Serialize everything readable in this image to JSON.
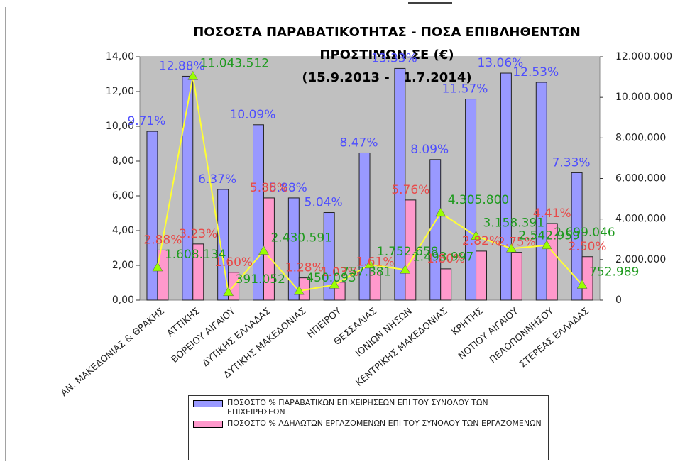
{
  "chart_data": {
    "type": "bar",
    "title": [
      "ΠΟΣΟΣΤΑ ΠΑΡΑΒΑΤΙΚΟΤΗΤΑΣ - ΠΟΣΑ ΕΠΙΒΛΗΘΕΝΤΩΝ",
      "ΠΡΟΣΤΙΜΩΝ ΣΕ (€)"
    ],
    "subtitle": "(15.9.2013 - 31.7.2014)",
    "categories": [
      "ΑΝ. ΜΑΚΕΔΟΝΙΑΣ & ΘΡΑΚΗΣ",
      "ΑΤΤΙΚΗΣ",
      "ΒΟΡΕΙΟΥ ΑΙΓΑΙΟΥ",
      "ΔΥΤΙΚΗΣ ΕΛΛΑΔΑΣ",
      "ΔΥΤΙΚΗΣ ΜΑΚΕΔΟΝΙΑΣ",
      "ΗΠΕΙΡΟΥ",
      "ΘΕΣΣΑΛΙΑΣ",
      "ΙΟΝΙΩΝ ΝΗΣΩΝ",
      "ΚΕΝΤΡΙΚΗΣ ΜΑΚΕΔΟΝΙΑΣ",
      "ΚΡΗΤΗΣ",
      "ΝΟΤΙΟΥ ΑΙΓΑΙΟΥ",
      "ΠΕΛΟΠΟΝΝΗΣΟΥ",
      "ΣΤΕΡΕΑΣ ΕΛΛΑΔΑΣ"
    ],
    "series": [
      {
        "name": "ΠΟΣΟΣΤΟ % ΠΑΡΑΒΑΤΙΚΩΝ ΕΠΙΧΕΙΡΗΣΕΩΝ ΕΠΙ ΤΟΥ ΣΥΝΟΛΟΥ ΤΩΝ ΕΠΙΧΕΙΡΗΣΕΩΝ",
        "color": "#9999ff",
        "label_color": "#4d4dff",
        "values": [
          9.71,
          12.88,
          6.37,
          10.09,
          5.88,
          5.04,
          8.47,
          13.33,
          8.09,
          11.57,
          13.06,
          12.53,
          7.33
        ],
        "value_labels": [
          "9.71%",
          "12.88%",
          "6.37%",
          "10.09%",
          "5.88%",
          "5.04%",
          "8.47%",
          "13.33%",
          "8.09%",
          "11.57%",
          "13.06%",
          "12.53%",
          "7.33%"
        ]
      },
      {
        "name": "ΠΟΣΟΣΤΟ % ΑΔΗΛΩΤΩΝ ΕΡΓΑΖΟΜΕΝΩΝ ΕΠΙ ΤΟΥ ΣΥΝΟΛΟΥ ΤΩΝ ΕΡΓΑΖΟΜΕΝΩΝ",
        "color": "#ff99cc",
        "label_color": "#e84a4a",
        "values": [
          2.88,
          3.23,
          1.6,
          5.88,
          1.28,
          1.03,
          1.61,
          5.76,
          1.8,
          2.82,
          2.75,
          4.41,
          2.5
        ],
        "value_labels": [
          "2.88%",
          "3.23%",
          "1.60%",
          "5.88%",
          "1.28%",
          "1.03%",
          "1.61%",
          "5.76%",
          "1.80%",
          "2.82%",
          "2.75%",
          "4.41%",
          "2.50%"
        ]
      },
      {
        "type": "line",
        "axis": "y2",
        "color": "#ffff33",
        "marker_color": "#99ff00",
        "label_color": "#1e9a1e",
        "values": [
          1608134,
          11043512,
          391052,
          2430591,
          450093,
          757381,
          1752658,
          1493997,
          4305800,
          3158391,
          2542959,
          2699046,
          752989
        ],
        "value_labels": [
          "1.608.134",
          "11.043.512",
          "391.052",
          "2.430.591",
          "450.093",
          "757.381",
          "1.752.658",
          "1.493.997",
          "4.305.800",
          "3.158.391",
          "2.542.959",
          "2.699.046",
          "752.989"
        ]
      }
    ],
    "ylim": [
      0,
      14
    ],
    "yticks": [
      {
        "value": 0,
        "label": "0,00"
      },
      {
        "value": 2,
        "label": "2,00"
      },
      {
        "value": 4,
        "label": "4,00"
      },
      {
        "value": 6,
        "label": "6,00"
      },
      {
        "value": 8,
        "label": "8,00"
      },
      {
        "value": 10,
        "label": "10,00"
      },
      {
        "value": 12,
        "label": "12,00"
      },
      {
        "value": 14,
        "label": "14,00"
      }
    ],
    "y2lim": [
      0,
      12000000
    ],
    "y2ticks": [
      0,
      {
        "value": 2000000,
        "label": "2.000.000"
      },
      {
        "value": 4000000,
        "label": "4.000.000"
      },
      {
        "value": 6000000,
        "label": "6.000.000"
      },
      {
        "value": 8000000,
        "label": "8.000.000"
      },
      {
        "value": 10000000,
        "label": "10.000.000"
      },
      {
        "value": 12000000,
        "label": "12.000.000"
      }
    ],
    "plot_background": "#c0c0c0",
    "legend": "bottom"
  }
}
